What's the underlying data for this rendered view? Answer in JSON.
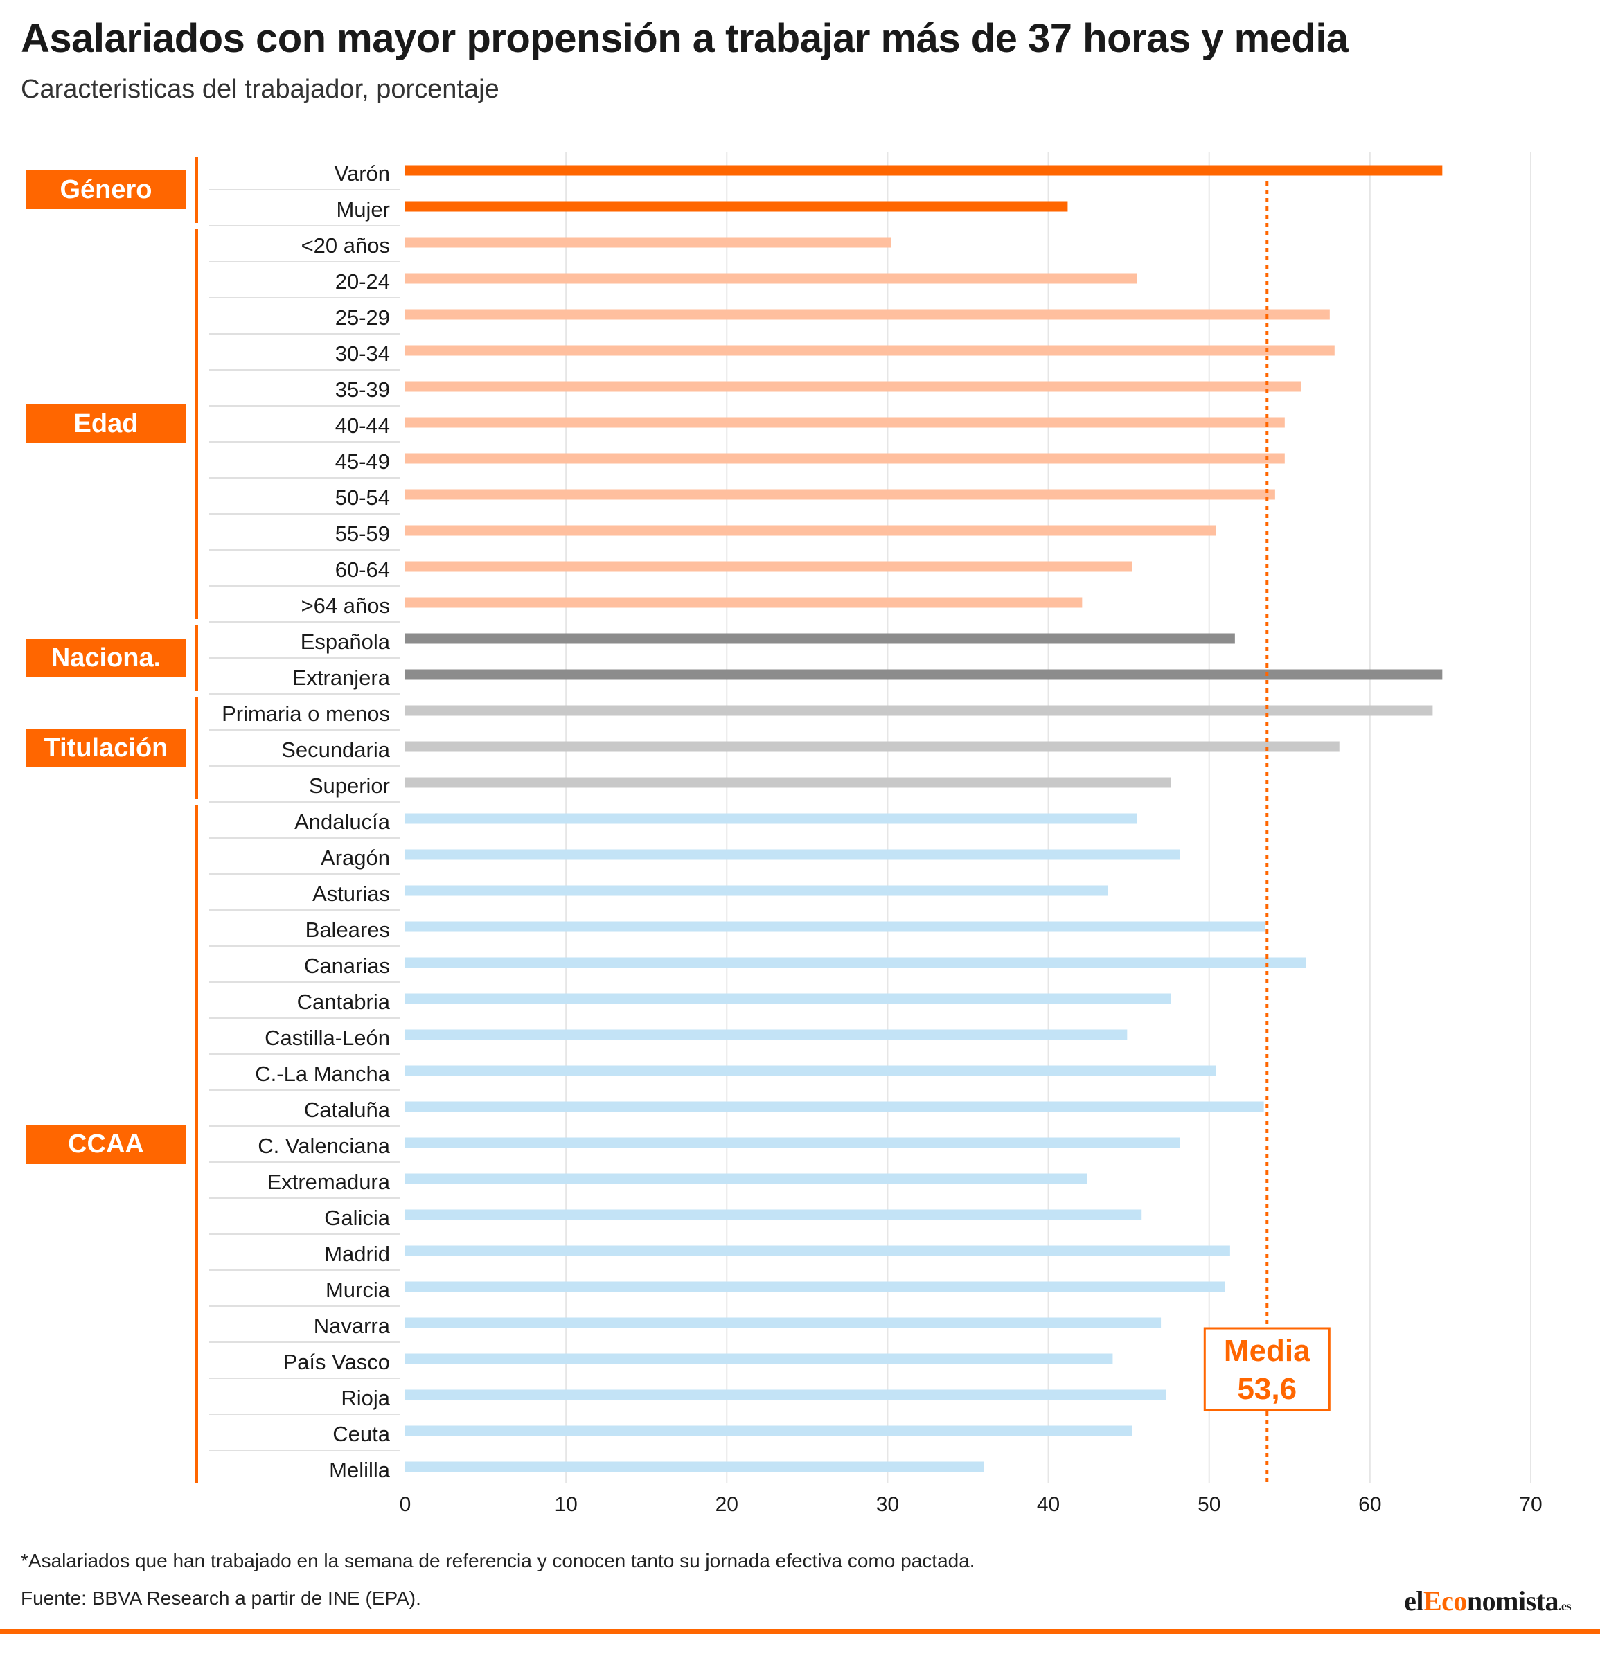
{
  "title": "Asalariados con mayor propensión a trabajar más de 37 horas y media",
  "subtitle": "Caracteristicas del trabajador, porcentaje",
  "footnote": "*Asalariados que han trabajado en la semana de referencia y conocen tanto su jornada efectiva como pactada.",
  "source": "Fuente: BBVA Research a partir de INE (EPA).",
  "brand": {
    "prefix": "el",
    "accent": "Eco",
    "suffix": "nomista",
    "tld": ".es"
  },
  "colors": {
    "accent": "#ff6600",
    "genero": "#ff6600",
    "edad": "#ffbf9e",
    "nacionalidad": "#8c8c8c",
    "titulacion": "#c8c8c8",
    "ccaa": "#c3e3f6",
    "grid": "#e6e6e6",
    "separator": "#e0e0e0"
  },
  "chart_data": {
    "type": "bar",
    "orientation": "horizontal",
    "xlim": [
      0,
      70
    ],
    "xticks": [
      0,
      10,
      20,
      30,
      40,
      50,
      60,
      70
    ],
    "grid": true,
    "reference_line": {
      "value": 53.6,
      "label_top": "Media",
      "label_bottom": "53,6"
    },
    "groups": [
      {
        "label": "Género",
        "color_key": "genero",
        "categories": [
          "Varón",
          "Mujer"
        ],
        "values": [
          64.5,
          41.2
        ]
      },
      {
        "label": "Edad",
        "color_key": "edad",
        "categories": [
          "<20 años",
          "20-24",
          "25-29",
          "30-34",
          "35-39",
          "40-44",
          "45-49",
          "50-54",
          "55-59",
          "60-64",
          ">64 años"
        ],
        "values": [
          30.2,
          45.5,
          57.5,
          57.8,
          55.7,
          54.7,
          54.7,
          54.1,
          50.4,
          45.2,
          42.1
        ]
      },
      {
        "label": "Naciona.",
        "color_key": "nacionalidad",
        "categories": [
          "Española",
          "Extranjera"
        ],
        "values": [
          51.6,
          64.5
        ]
      },
      {
        "label": "Titulación",
        "color_key": "titulacion",
        "categories": [
          "Primaria o menos",
          "Secundaria",
          "Superior"
        ],
        "values": [
          63.9,
          58.1,
          47.6
        ]
      },
      {
        "label": "CCAA",
        "color_key": "ccaa",
        "categories": [
          "Andalucía",
          "Aragón",
          "Asturias",
          "Baleares",
          "Canarias",
          "Cantabria",
          "Castilla-León",
          "C.-La Mancha ",
          "Cataluña",
          "C. Valenciana ",
          "Extremadura",
          "Galicia",
          "Madrid",
          "Murcia",
          "Navarra",
          "País Vasco",
          "Rioja",
          "Ceuta",
          "Melilla"
        ],
        "values": [
          45.5,
          48.2,
          43.7,
          53.5,
          56.0,
          47.6,
          44.9,
          50.4,
          53.4,
          48.2,
          42.4,
          45.8,
          51.3,
          51.0,
          47.0,
          44.0,
          47.3,
          45.2,
          36.0
        ]
      }
    ]
  }
}
